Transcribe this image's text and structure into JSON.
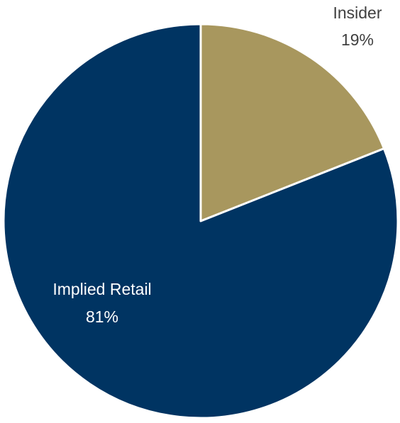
{
  "chart_data": {
    "type": "pie",
    "title": "",
    "slices": [
      {
        "label": "Insider",
        "value": 19,
        "value_label": "19%",
        "color": "#A8975E"
      },
      {
        "label": "Implied Retail",
        "value": 81,
        "value_label": "81%",
        "color": "#003462"
      }
    ],
    "start_angle": "12 o'clock",
    "direction": "clockwise",
    "slice_border_color": "#ffffff",
    "label_colors": {
      "Insider": "#404040",
      "Implied Retail": "#ffffff"
    },
    "legend": "none"
  }
}
